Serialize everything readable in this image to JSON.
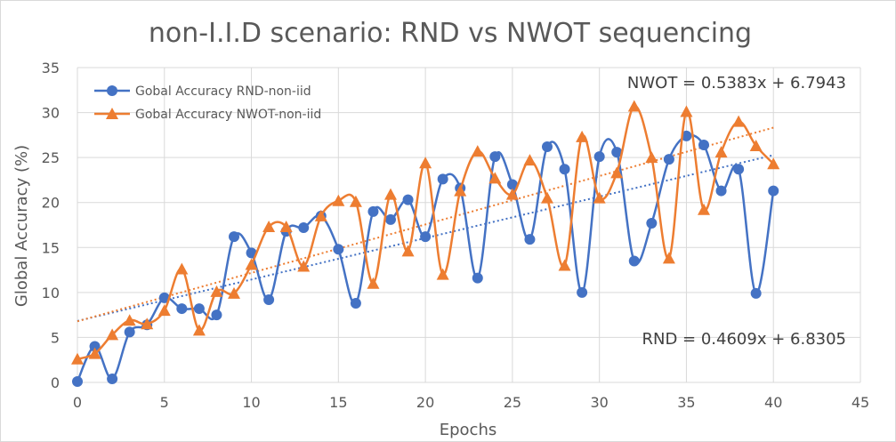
{
  "chart_data": {
    "type": "line",
    "title": "non-I.I.D scenario: RND vs NWOT sequencing",
    "xlabel": "Epochs",
    "ylabel": "Global Accuracy (%)",
    "xlim": [
      0,
      45
    ],
    "ylim": [
      0,
      35
    ],
    "x_ticks": [
      0,
      5,
      10,
      15,
      20,
      25,
      30,
      35,
      40,
      45
    ],
    "y_ticks": [
      0,
      5,
      10,
      15,
      20,
      25,
      30,
      35
    ],
    "grid": true,
    "legend_position": "top-left",
    "x": [
      0,
      1,
      2,
      3,
      4,
      5,
      6,
      7,
      8,
      9,
      10,
      11,
      12,
      13,
      14,
      15,
      16,
      17,
      18,
      19,
      20,
      21,
      22,
      23,
      24,
      25,
      26,
      27,
      28,
      29,
      30,
      31,
      32,
      33,
      34,
      35,
      36,
      37,
      38,
      39,
      40
    ],
    "series": [
      {
        "name": "Gobal Accuracy RND-non-iid",
        "color": "#4472c4",
        "marker": "circle",
        "smooth": true,
        "values": [
          0.1,
          4.0,
          0.4,
          5.6,
          6.4,
          9.4,
          8.2,
          8.2,
          7.5,
          16.2,
          14.4,
          9.2,
          16.8,
          17.2,
          18.5,
          14.8,
          8.8,
          19.0,
          18.1,
          20.3,
          16.2,
          22.6,
          21.6,
          11.6,
          25.1,
          22.0,
          15.9,
          26.2,
          23.7,
          10.0,
          25.1,
          25.6,
          13.5,
          17.7,
          24.8,
          27.4,
          26.4,
          21.3,
          23.7,
          9.9,
          21.3
        ],
        "trendline": {
          "slope": 0.4609,
          "intercept": 6.8305
        }
      },
      {
        "name": "Gobal Accuracy NWOT-non-iid",
        "color": "#ed7d31",
        "marker": "triangle",
        "smooth": true,
        "values": [
          2.6,
          3.2,
          5.3,
          6.9,
          6.5,
          8.0,
          12.6,
          5.8,
          10.1,
          9.9,
          13.1,
          17.3,
          17.3,
          12.9,
          18.5,
          20.2,
          20.1,
          11.0,
          20.9,
          14.6,
          24.4,
          12.0,
          21.3,
          25.7,
          22.7,
          20.9,
          24.7,
          20.5,
          13.0,
          27.3,
          20.5,
          23.3,
          30.7,
          25.0,
          13.8,
          30.1,
          19.2,
          25.6,
          29.0,
          26.3,
          24.3
        ],
        "trendline": {
          "slope": 0.5383,
          "intercept": 6.7943
        }
      }
    ],
    "annotations": [
      {
        "text": "NWOT = 0.5383x + 6.7943",
        "series": "Gobal Accuracy NWOT-non-iid",
        "position": "top-right"
      },
      {
        "text": "RND = 0.4609x + 6.8305",
        "series": "Gobal Accuracy RND-non-iid",
        "position": "bottom-right"
      }
    ]
  }
}
